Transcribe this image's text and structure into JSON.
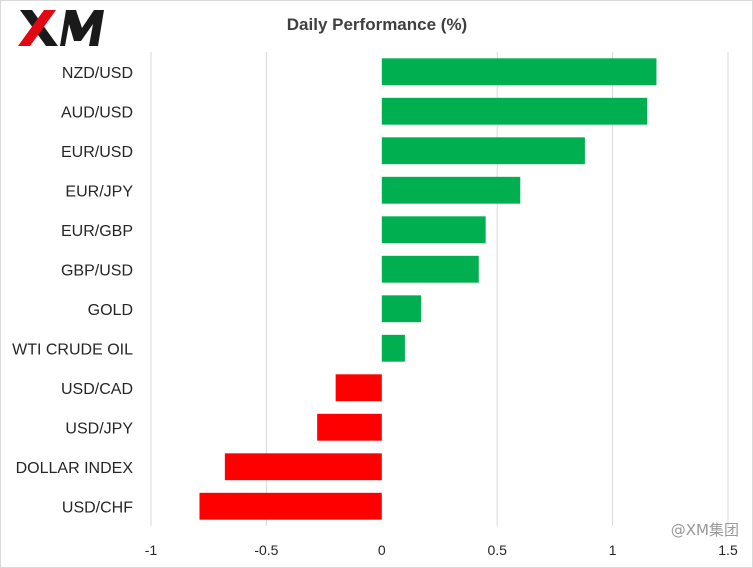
{
  "brand": {
    "logo_text": "XM",
    "watermark": "@XM集团"
  },
  "colors": {
    "positive": "#00b050",
    "negative": "#ff0000",
    "grid": "#d9d9d9",
    "logo_red": "#e30613"
  },
  "chart_data": {
    "type": "bar",
    "orientation": "horizontal",
    "title": "Daily Performance  (%)",
    "categories": [
      "NZD/USD",
      "AUD/USD",
      "EUR/USD",
      "EUR/JPY",
      "EUR/GBP",
      "GBP/USD",
      "GOLD",
      "WTI CRUDE OIL",
      "USD/CAD",
      "USD/JPY",
      "DOLLAR INDEX",
      "USD/CHF"
    ],
    "values": [
      1.19,
      1.15,
      0.88,
      0.6,
      0.45,
      0.42,
      0.17,
      0.1,
      -0.2,
      -0.28,
      -0.68,
      -0.79
    ],
    "xlim": [
      -1,
      1.5
    ],
    "xticks": [
      -1,
      -0.5,
      0,
      0.5,
      1,
      1.5
    ],
    "xtick_labels": [
      "-1",
      "-0.5",
      "0",
      "0.5",
      "1",
      "1.5"
    ],
    "grid": "vertical",
    "legend": "none"
  }
}
